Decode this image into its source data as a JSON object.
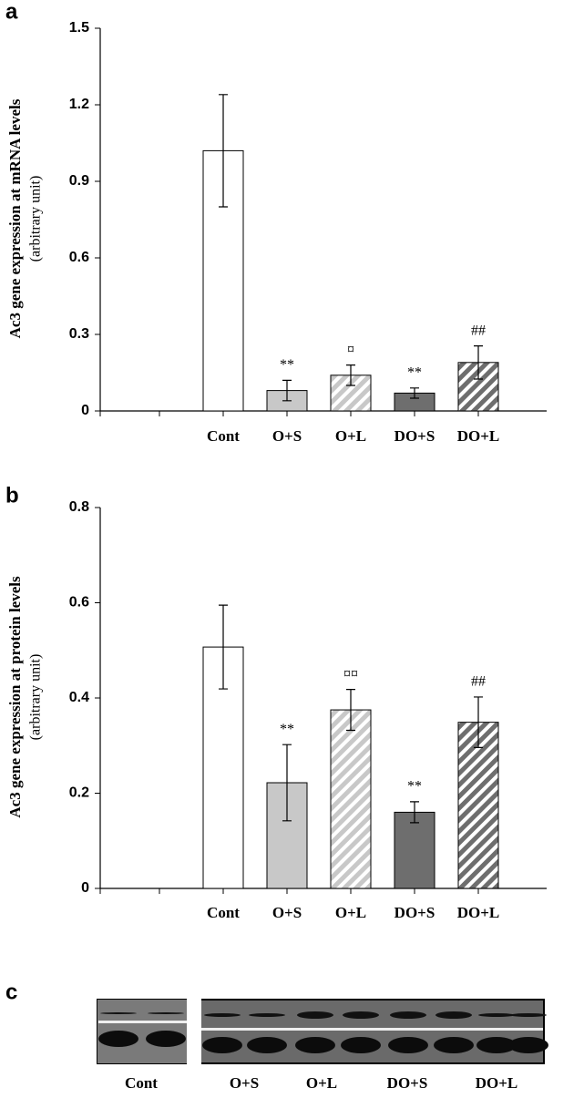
{
  "chart_data": [
    {
      "type": "bar",
      "panel": "a",
      "y_label": "Ac3 gene expression at mRNA levels",
      "y_label_sub": "(arbitrary unit)",
      "categories": [
        "Cont",
        "O+S",
        "O+L",
        "DO+S",
        "DO+L"
      ],
      "values": [
        1.02,
        0.08,
        0.14,
        0.07,
        0.19
      ],
      "errors": [
        0.22,
        0.04,
        0.04,
        0.02,
        0.065
      ],
      "annotations": [
        null,
        "**",
        "¤",
        "**",
        "##"
      ],
      "colors": [
        "#ffffff",
        "#c8c8c8",
        "#c8c8c8",
        "#6e6e6e",
        "#6e6e6e"
      ],
      "hatched": [
        false,
        false,
        true,
        false,
        true
      ],
      "ylim": [
        0,
        1.5
      ],
      "yticks": [
        0,
        0.3,
        0.6,
        0.9,
        1.2,
        1.5
      ]
    },
    {
      "type": "bar",
      "panel": "b",
      "y_label": "Ac3 gene expression at protein levels",
      "y_label_sub": "(arbitrary unit)",
      "categories": [
        "Cont",
        "O+S",
        "O+L",
        "DO+S",
        "DO+L"
      ],
      "values": [
        0.507,
        0.222,
        0.375,
        0.16,
        0.349
      ],
      "errors": [
        0.088,
        0.08,
        0.043,
        0.022,
        0.053
      ],
      "annotations": [
        null,
        "**",
        "¤¤",
        "**",
        "##"
      ],
      "colors": [
        "#ffffff",
        "#c8c8c8",
        "#c8c8c8",
        "#6e6e6e",
        "#6e6e6e"
      ],
      "hatched": [
        false,
        false,
        true,
        false,
        true
      ],
      "ylim": [
        0,
        0.8
      ],
      "yticks": [
        0,
        0.2,
        0.4,
        0.6,
        0.8
      ]
    }
  ],
  "blot": {
    "panel": "c",
    "lanes": [
      "Cont",
      "O+S",
      "O+L",
      "DO+S",
      "DO+L"
    ]
  }
}
